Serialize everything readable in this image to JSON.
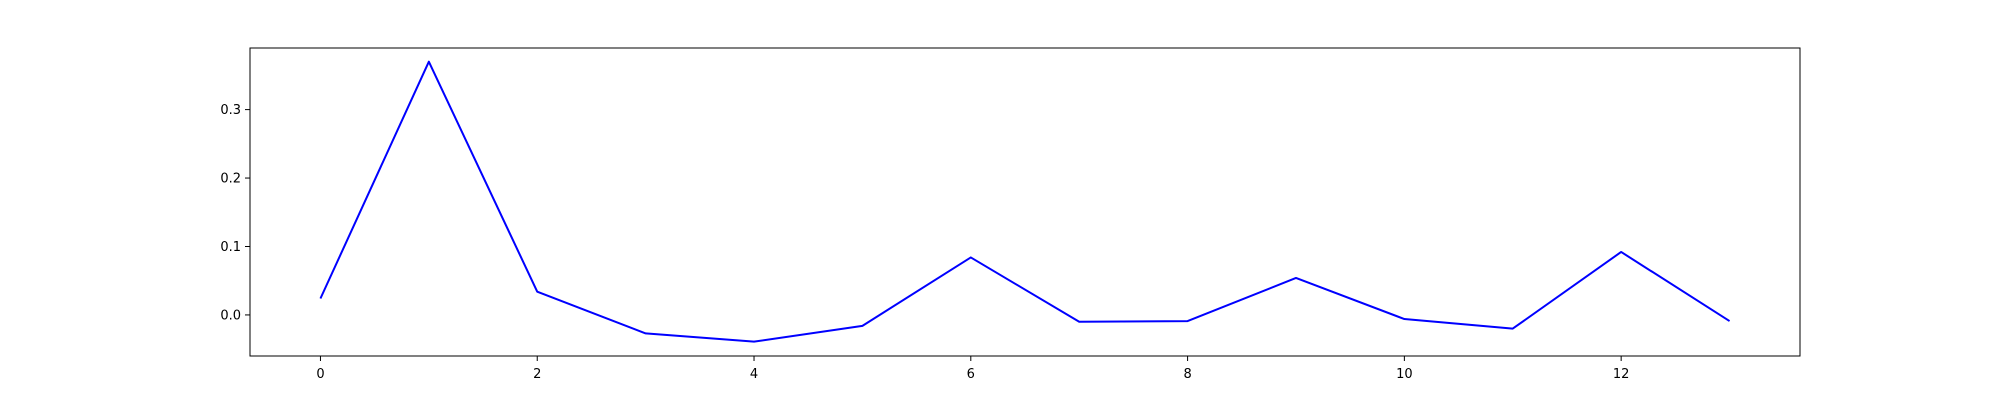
{
  "chart_data": {
    "type": "line",
    "title": "",
    "xlabel": "",
    "ylabel": "",
    "xlim": [
      -0.65,
      13.65
    ],
    "ylim": [
      -0.06,
      0.39
    ],
    "xticks": [
      0,
      2,
      4,
      6,
      8,
      10,
      12
    ],
    "yticks": [
      0.0,
      0.1,
      0.2,
      0.3
    ],
    "x_tick_labels": [
      "0",
      "2",
      "4",
      "6",
      "8",
      "10",
      "12"
    ],
    "y_tick_labels": [
      "0.0",
      "0.1",
      "0.2",
      "0.3"
    ],
    "grid": false,
    "legend": "none",
    "series": [
      {
        "color": "#0000ff",
        "x": [
          0,
          1,
          2,
          3,
          4,
          5,
          6,
          7,
          8,
          9,
          10,
          11,
          12,
          13
        ],
        "y": [
          0.024,
          0.37,
          0.034,
          -0.027,
          -0.039,
          -0.016,
          0.084,
          -0.01,
          -0.009,
          0.054,
          -0.006,
          -0.02,
          0.092,
          -0.009
        ]
      }
    ]
  }
}
